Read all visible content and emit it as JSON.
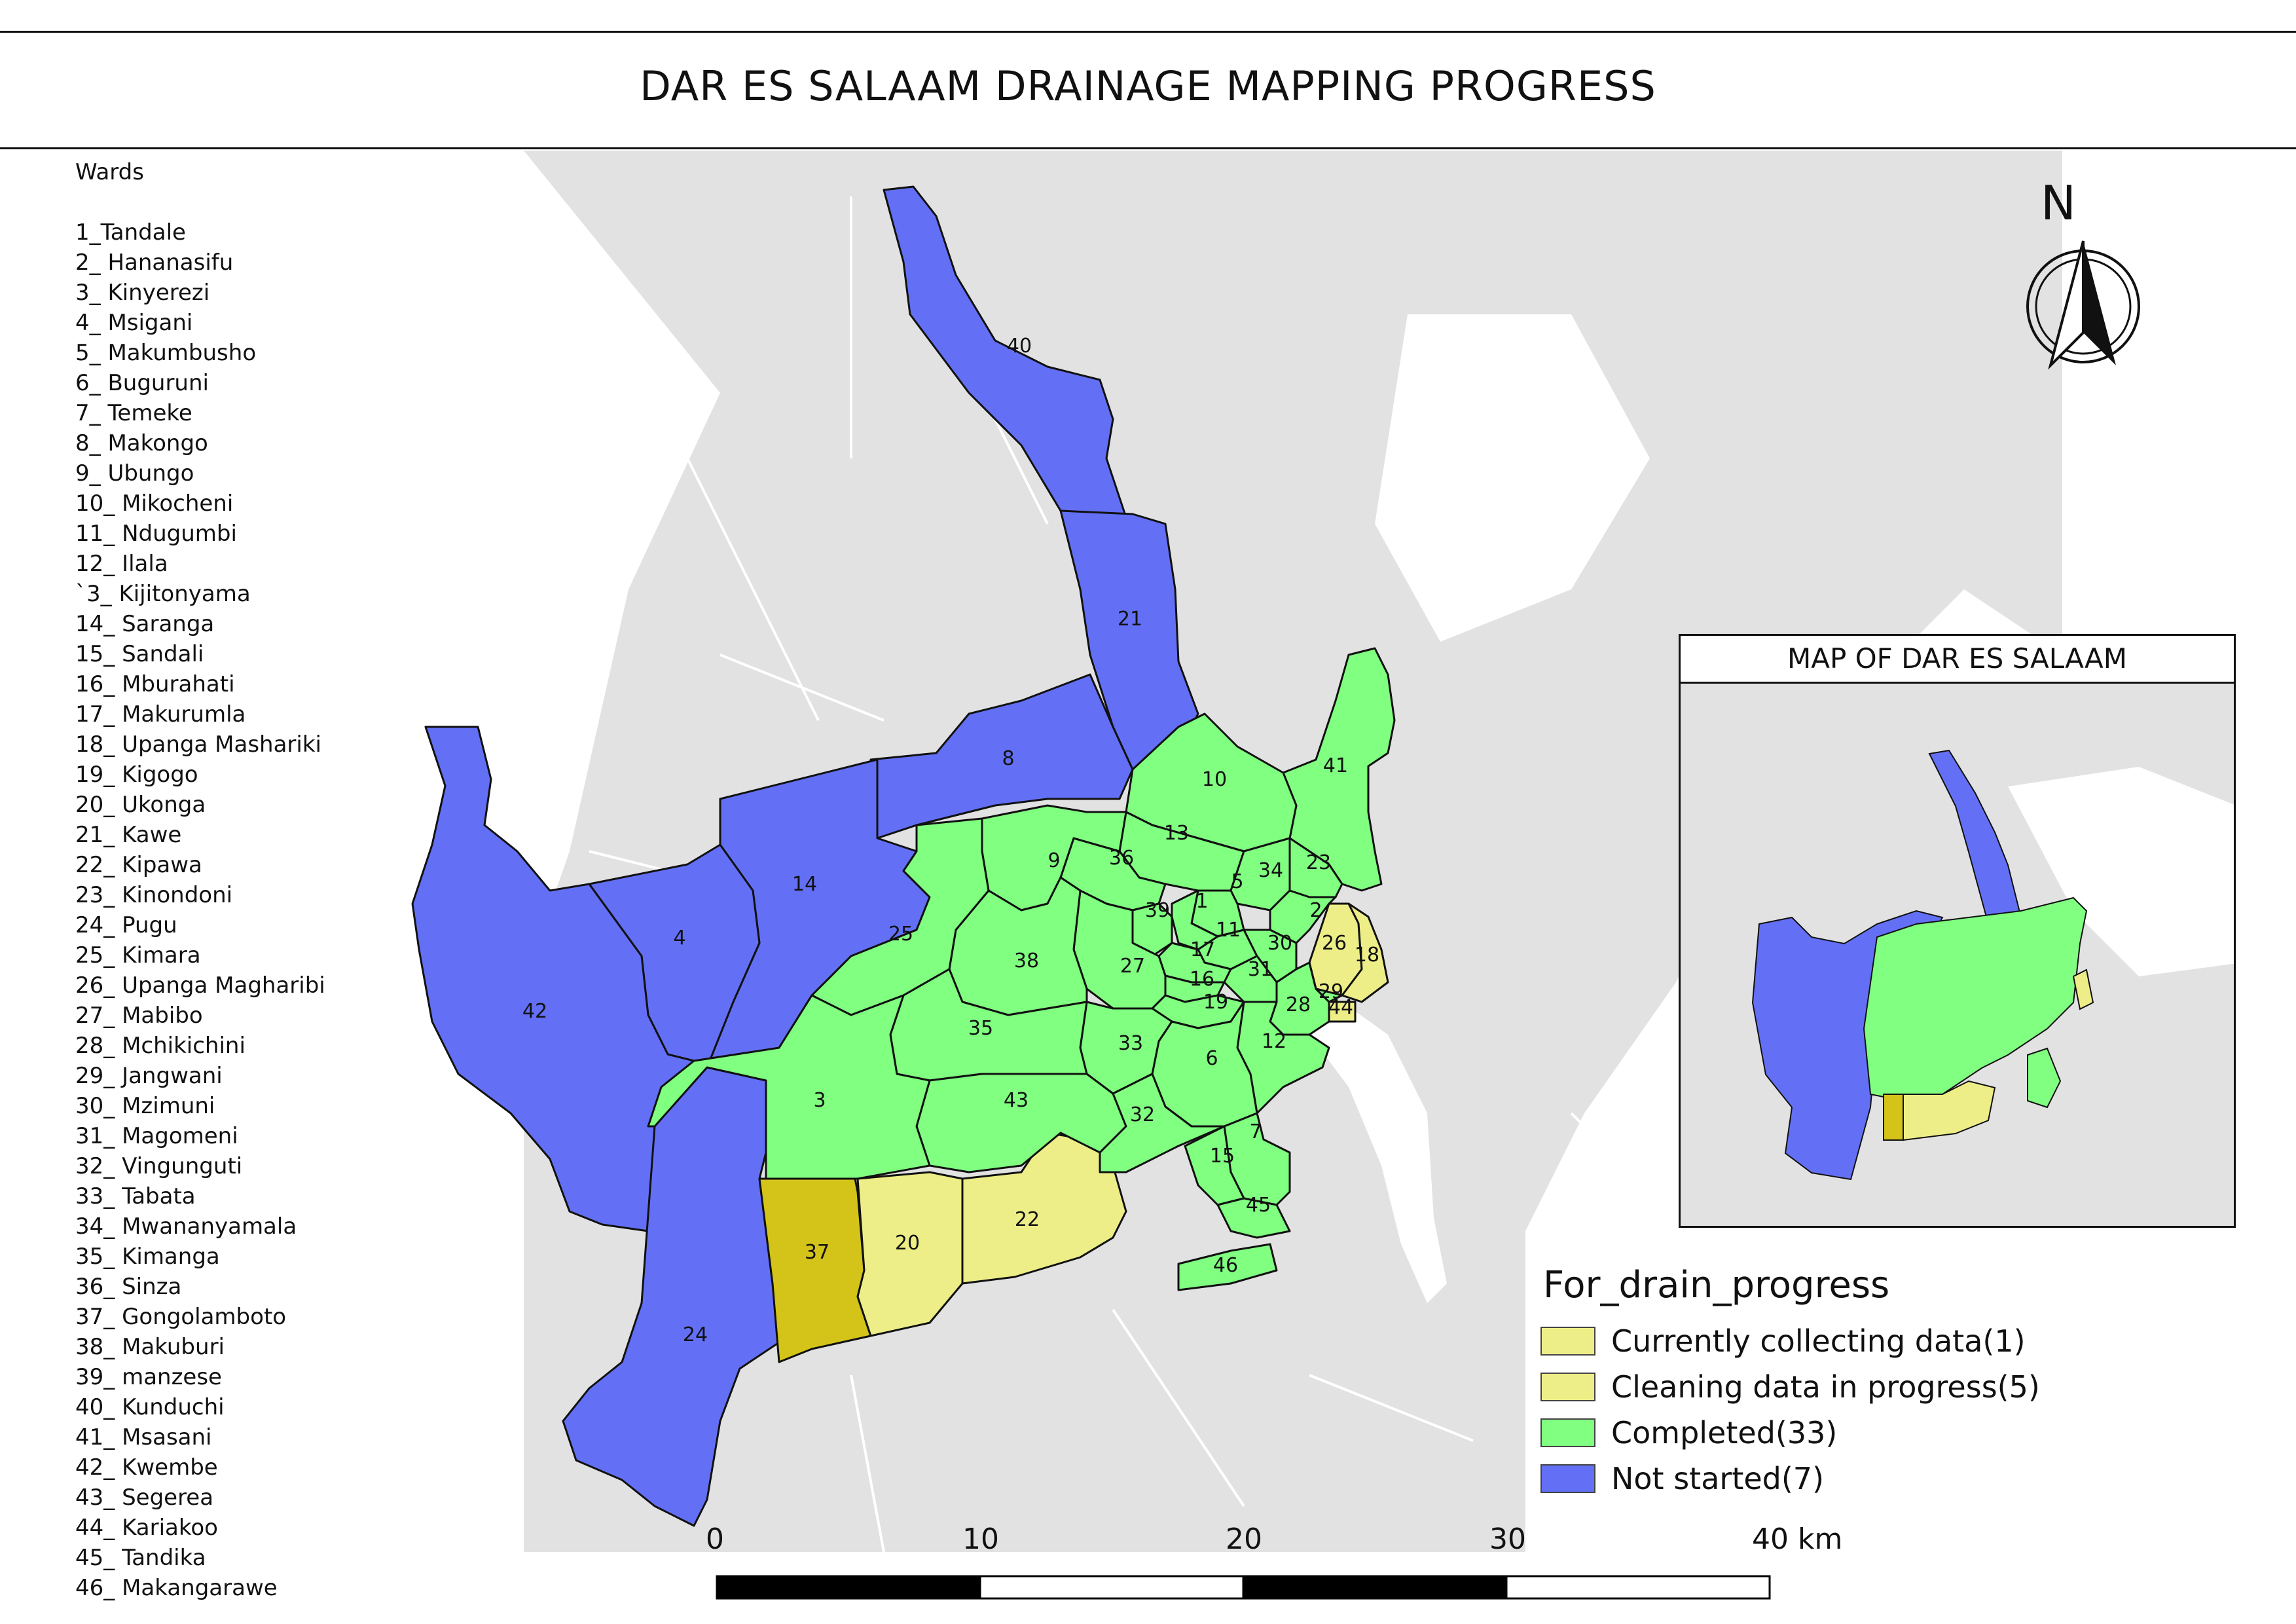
{
  "title": "DAR ES SALAAM DRAINAGE MAPPING PROGRESS",
  "colors": {
    "background_land": "#e2e2e2",
    "completed": "#80ff80",
    "cleaning": "#eeee88",
    "collecting": "#d4c41a",
    "not_started": "#6370f5",
    "boundary": "#111111"
  },
  "wards_panel": {
    "heading": "Wards",
    "items": [
      "1_Tandale",
      "2_ Hananasifu",
      "3_ Kinyerezi",
      "4_ Msigani",
      "5_ Makumbusho",
      "6_ Buguruni",
      "7_ Temeke",
      "8_ Makongo",
      "9_ Ubungo",
      "10_ Mikocheni",
      "11_ Ndugumbi",
      "12_ Ilala",
      "`3_ Kijitonyama",
      "14_ Saranga",
      "15_ Sandali",
      "16_ Mburahati",
      "17_ Makurumla",
      "18_ Upanga Mashariki",
      "19_ Kigogo",
      "20_ Ukonga",
      "21_ Kawe",
      "22_ Kipawa",
      "23_ Kinondoni",
      "24_ Pugu",
      "25_ Kimara",
      "26_ Upanga Magharibi",
      "27_ Mabibo",
      "28_ Mchikichini",
      "29_ Jangwani",
      "30_ Mzimuni",
      "31_ Magomeni",
      "32_ Vingunguti",
      "33_ Tabata",
      "34_ Mwananyamala",
      "35_ Kimanga",
      "36_ Sinza",
      "37_ Gongolamboto",
      "38_ Makuburi",
      "39_ manzese",
      "40_ Kunduchi",
      "41_ Msasani",
      "42_ Kwembe",
      "43_ Segerea",
      "44_ Kariakoo",
      "45_ Tandika",
      "46_ Makangarawe"
    ]
  },
  "ward_labels": [
    "1",
    "2",
    "3",
    "4",
    "5",
    "6",
    "7",
    "8",
    "9",
    "10",
    "11",
    "12",
    "13",
    "14",
    "15",
    "16",
    "17",
    "18",
    "19",
    "20",
    "21",
    "22",
    "23",
    "24",
    "25",
    "26",
    "27",
    "28",
    "29",
    "30",
    "31",
    "32",
    "33",
    "34",
    "35",
    "36",
    "37",
    "38",
    "39",
    "40",
    "41",
    "42",
    "43",
    "44",
    "45",
    "46"
  ],
  "legend": {
    "title": "For_drain_progress",
    "items": [
      {
        "label": "Currently collecting data(1)",
        "status": "collecting"
      },
      {
        "label": "Cleaning data in progress(5)",
        "status": "cleaning"
      },
      {
        "label": "Completed(33)",
        "status": "completed"
      },
      {
        "label": "Not started(7)",
        "status": "not_started"
      }
    ]
  },
  "inset": {
    "title": "MAP OF DAR ES SALAAM"
  },
  "scale_bar": {
    "labels": [
      "0",
      "10",
      "20",
      "30",
      "40 km"
    ]
  },
  "north_arrow": {
    "label": "N"
  }
}
